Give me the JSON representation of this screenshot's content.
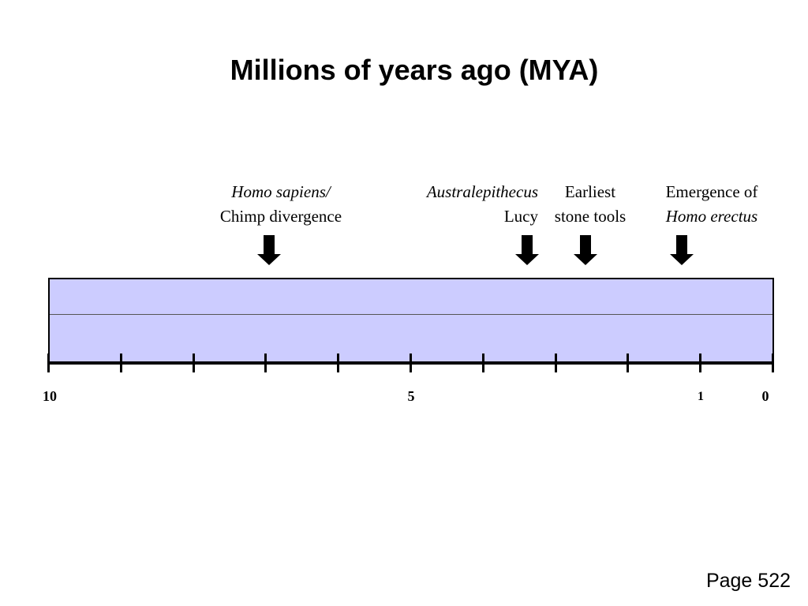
{
  "title": "Millions of years ago (MYA)",
  "events": [
    {
      "id": "chimp-divergence",
      "line1": "Homo sapiens/",
      "line2": "Chimp divergence",
      "mya": 7
    },
    {
      "id": "australopithecus-lucy",
      "line1": "Australepithecus",
      "line2": "Lucy",
      "mya": 3.2
    },
    {
      "id": "earliest-stone-tools",
      "line1": "Earliest",
      "line2": "stone tools",
      "mya": 2.6
    },
    {
      "id": "homo-erectus",
      "line1": "Emergence of",
      "line2": "Homo erectus",
      "mya": 1.3
    }
  ],
  "axis": {
    "max_mya": 10,
    "min_mya": 0,
    "tick_count": 11,
    "labels": [
      {
        "text": "10",
        "mya": 10
      },
      {
        "text": "5",
        "mya": 5
      },
      {
        "text": "1",
        "mya": 1
      },
      {
        "text": "0",
        "mya": 0
      }
    ]
  },
  "colors": {
    "band": "#ccccff",
    "ink": "#000000"
  },
  "footer": {
    "page": "Page 522"
  }
}
